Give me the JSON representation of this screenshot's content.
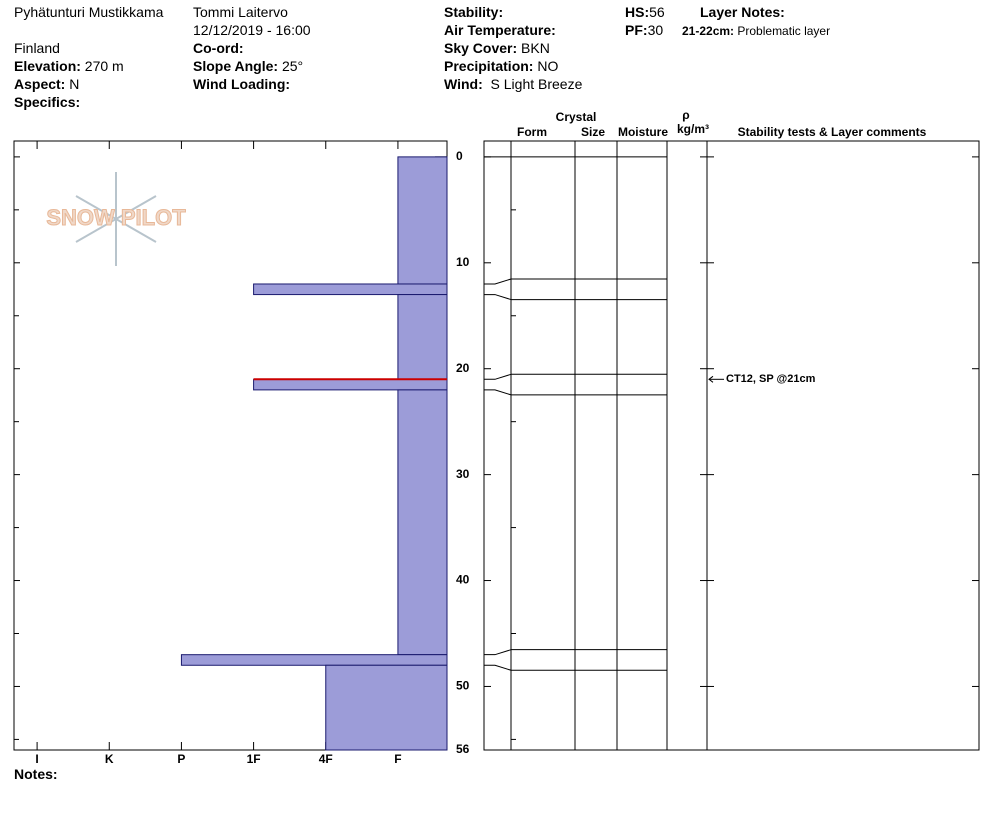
{
  "header": {
    "site": "Pyhätunturi Mustikkama",
    "country": "Finland",
    "observer": "Tommi Laitervo",
    "datetime": "12/12/2019 - 16:00",
    "elevation": {
      "label": "Elevation:",
      "text": "270 m"
    },
    "aspect": {
      "label": "Aspect:",
      "text": "N"
    },
    "specifics": "Specifics:",
    "coord": "Co-ord:",
    "slope": {
      "label": "Slope Angle:",
      "text": "25°"
    },
    "wind_loading": "Wind Loading:",
    "stability": "Stability:",
    "air_temp": "Air Temperature:",
    "sky": {
      "label": "Sky Cover:",
      "text": "BKN"
    },
    "precip": {
      "label": "Precipitation:",
      "text": "NO"
    },
    "wind": {
      "label": "Wind:",
      "text": "S Light Breeze"
    },
    "hs": {
      "label": "HS:",
      "text": "56"
    },
    "pf": {
      "label": "PF:",
      "text": "30"
    },
    "layer_notes": "Layer Notes:",
    "layer_note": {
      "label": "21-22cm:",
      "text": "Problematic layer"
    }
  },
  "columns": {
    "crystal": "Crystal",
    "form": "Form",
    "size": "Size",
    "moisture": "Moisture",
    "rho": "ρ",
    "density": "kg/m³",
    "comments": "Stability tests & Layer comments"
  },
  "logo": "SNOW PILOT",
  "notes": "Notes:",
  "chart_data": {
    "type": "snow-profile",
    "top": [
      0,
      12,
      13,
      21,
      22,
      47,
      48
    ],
    "bottom": [
      12,
      13,
      21,
      22,
      47,
      48,
      56
    ],
    "values": [
      1,
      3,
      1,
      3,
      1,
      4,
      2
    ],
    "color": "#9c9cd8",
    "xlim": [
      6.32,
      0.32
    ],
    "xticks": [
      {
        "value": 6,
        "label": "I"
      },
      {
        "value": 5,
        "label": "K"
      },
      {
        "value": 4,
        "label": "P"
      },
      {
        "value": 3,
        "label": "1F"
      },
      {
        "value": 2,
        "label": "4F"
      },
      {
        "value": 1,
        "label": "F"
      }
    ],
    "ylim": [
      -1.5,
      56
    ],
    "yticks": [
      0,
      10,
      20,
      30,
      40,
      50,
      56
    ],
    "minor_yticks": [
      5,
      15,
      25,
      35,
      45,
      55
    ],
    "highlight": {
      "depth": 21,
      "color": "#cc0000"
    },
    "comments": [
      {
        "depth": 21,
        "text": "CT12, SP @21cm"
      }
    ]
  }
}
